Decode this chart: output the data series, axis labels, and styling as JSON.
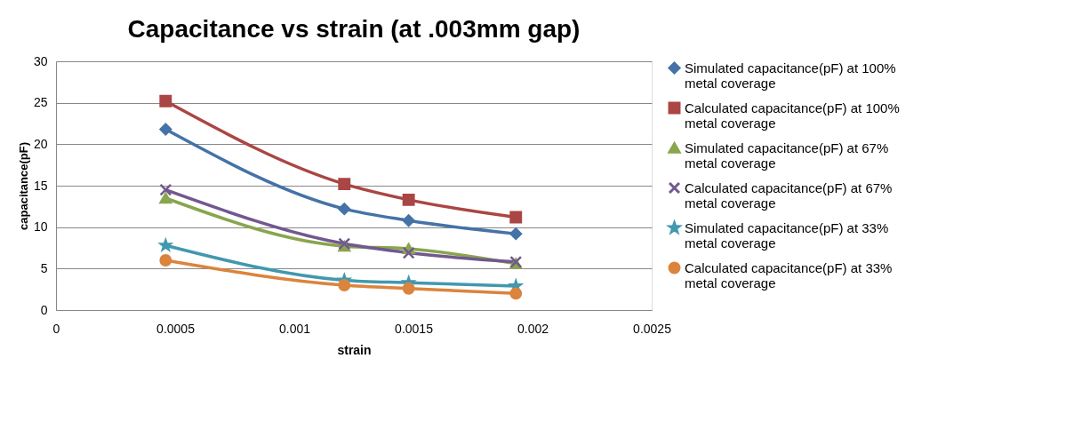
{
  "chart_data": {
    "type": "line",
    "title": "Capacitance vs strain (at .003mm gap)",
    "xlabel": "strain",
    "ylabel": "capacitance(pF)",
    "x": [
      0.00046,
      0.00121,
      0.00148,
      0.00193
    ],
    "xlim": [
      0,
      0.0025
    ],
    "xticks": [
      0,
      0.0005,
      0.001,
      0.0015,
      0.002,
      0.0025
    ],
    "ylim": [
      0,
      30
    ],
    "yticks": [
      0,
      5,
      10,
      15,
      20,
      25,
      30
    ],
    "grid": "y",
    "legend": "right",
    "line_style": "solid",
    "series": [
      {
        "name": "Simulated capacitance(pF) at 100% metal coverage",
        "color": "#4572a7",
        "marker": "diamond",
        "values": [
          21.8,
          12.2,
          10.8,
          9.2
        ]
      },
      {
        "name": "Calculated capacitance(pF) at 100% metal coverage",
        "color": "#aa4643",
        "marker": "square",
        "values": [
          25.2,
          15.2,
          13.3,
          11.2
        ]
      },
      {
        "name": "Simulated capacitance(pF) at 67% metal coverage",
        "color": "#89a54e",
        "marker": "triangle",
        "values": [
          13.5,
          7.7,
          7.4,
          5.6
        ]
      },
      {
        "name": "Calculated capacitance(pF) at 67% metal coverage",
        "color": "#71588f",
        "marker": "cross",
        "values": [
          14.5,
          8.0,
          6.9,
          5.8
        ]
      },
      {
        "name": "Simulated capacitance(pF) at 33% metal coverage",
        "color": "#4198af",
        "marker": "star",
        "values": [
          7.8,
          3.6,
          3.3,
          2.9
        ]
      },
      {
        "name": "Calculated capacitance(pF) at 33% metal coverage",
        "color": "#db843d",
        "marker": "circle",
        "values": [
          6.0,
          3.0,
          2.6,
          2.0
        ]
      }
    ]
  }
}
